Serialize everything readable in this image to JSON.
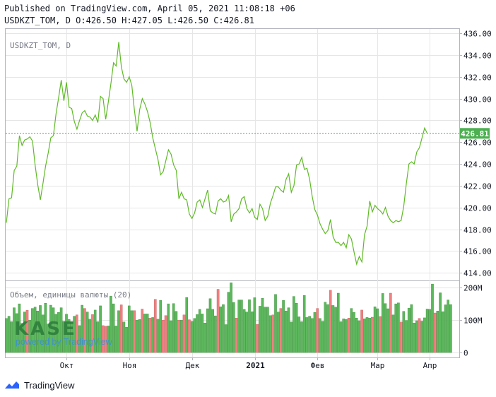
{
  "header": {
    "line1": "Published on TradingView.com, April 05, 2021 11:08:18 +06",
    "line2": "USDKZT_TOM, D O:426.50 H:427.05 L:426.50 C:426.81"
  },
  "footer": {
    "brand": "TradingView"
  },
  "watermark": {
    "logo_text": "KASE",
    "tagline": "powered by TradingView"
  },
  "colors": {
    "line": "#5fba27",
    "up": "#5cb85c",
    "down": "#f08080",
    "last": "#4caf50",
    "grid": "#e6e6e6"
  },
  "chart_data": {
    "type": "line",
    "title": "USDKZT_TOM, D",
    "y_ticks": [
      "436.00",
      "434.00",
      "432.00",
      "430.00",
      "428.00",
      "426.00",
      "424.00",
      "422.00",
      "420.00",
      "418.00",
      "416.00",
      "414.00"
    ],
    "ylim": [
      413.3,
      436.4
    ],
    "x_ticks": [
      "Окт",
      "Ноя",
      "Дек",
      "2021",
      "Фев",
      "Мар",
      "Апр"
    ],
    "x_tick_index": [
      23,
      47,
      71,
      95,
      119,
      142,
      162
    ],
    "last_value": "426.81",
    "series": [
      {
        "values": [
          418.6,
          420.8,
          420.9,
          423.4,
          423.8,
          426.6,
          425.7,
          426.2,
          426.3,
          426.5,
          426.1,
          423.9,
          422.1,
          420.7,
          422.2,
          423.8,
          425.0,
          426.4,
          426.6,
          428.6,
          430.1,
          431.7,
          429.8,
          431.5,
          429.2,
          429.1,
          427.9,
          427.2,
          428.0,
          428.7,
          428.9,
          428.4,
          428.3,
          428.0,
          428.5,
          427.8,
          430.2,
          430.0,
          428.1,
          429.7,
          431.4,
          433.3,
          433.0,
          435.2,
          432.9,
          431.8,
          431.5,
          432.0,
          431.2,
          428.9,
          427.0,
          429.0,
          430.0,
          429.5,
          428.8,
          427.8,
          426.4,
          425.4,
          424.4,
          423.0,
          423.3,
          424.3,
          425.3,
          424.9,
          423.9,
          423.4,
          420.8,
          421.4,
          420.8,
          420.7,
          419.4,
          419.0,
          419.5,
          420.5,
          420.7,
          420.0,
          420.8,
          421.6,
          419.7,
          419.5,
          419.4,
          420.6,
          420.8,
          420.5,
          420.6,
          421.1,
          418.7,
          419.4,
          419.6,
          419.9,
          420.8,
          421.0,
          419.9,
          419.5,
          419.9,
          419.1,
          418.9,
          420.3,
          419.9,
          418.8,
          419.2,
          420.4,
          421.1,
          421.9,
          421.9,
          421.6,
          421.4,
          422.6,
          423.1,
          421.4,
          422.0,
          423.9,
          424.0,
          424.6,
          423.5,
          423.6,
          422.6,
          421.0,
          419.8,
          419.3,
          418.5,
          418.0,
          417.6,
          417.9,
          418.9,
          417.3,
          416.8,
          416.8,
          416.5,
          416.8,
          416.3,
          417.5,
          417.1,
          415.9,
          414.8,
          415.5,
          415.0,
          417.5,
          418.3,
          420.6,
          419.6,
          420.2,
          419.9,
          419.7,
          419.4,
          420.0,
          419.2,
          418.8,
          418.6,
          418.8,
          418.7,
          418.8,
          420.1,
          422.2,
          424.0,
          424.2,
          424.0,
          425.1,
          425.5,
          426.4,
          427.3,
          426.8
        ]
      }
    ],
    "volume": {
      "label": "Объем, единицы валюты (20)",
      "y_ticks": [
        "200M",
        "100M",
        "0"
      ],
      "ylim": [
        0,
        220
      ],
      "bars": [
        [
          105,
          1
        ],
        [
          112,
          1
        ],
        [
          95,
          1
        ],
        [
          138,
          1
        ],
        [
          120,
          1
        ],
        [
          150,
          1
        ],
        [
          90,
          1
        ],
        [
          125,
          1
        ],
        [
          130,
          0
        ],
        [
          100,
          1
        ],
        [
          136,
          1
        ],
        [
          140,
          1
        ],
        [
          128,
          1
        ],
        [
          145,
          1
        ],
        [
          116,
          1
        ],
        [
          152,
          1
        ],
        [
          88,
          1
        ],
        [
          146,
          1
        ],
        [
          138,
          1
        ],
        [
          118,
          1
        ],
        [
          124,
          1
        ],
        [
          138,
          1
        ],
        [
          96,
          1
        ],
        [
          118,
          1
        ],
        [
          102,
          1
        ],
        [
          95,
          1
        ],
        [
          112,
          1
        ],
        [
          116,
          0
        ],
        [
          83,
          1
        ],
        [
          146,
          1
        ],
        [
          136,
          0
        ],
        [
          125,
          1
        ],
        [
          103,
          1
        ],
        [
          117,
          0
        ],
        [
          131,
          1
        ],
        [
          95,
          1
        ],
        [
          144,
          1
        ],
        [
          83,
          0
        ],
        [
          81,
          0
        ],
        [
          82,
          1
        ],
        [
          174,
          1
        ],
        [
          150,
          1
        ],
        [
          82,
          1
        ],
        [
          129,
          1
        ],
        [
          147,
          0
        ],
        [
          94,
          1
        ],
        [
          78,
          1
        ],
        [
          144,
          1
        ],
        [
          129,
          1
        ],
        [
          129,
          0
        ],
        [
          100,
          1
        ],
        [
          102,
          1
        ],
        [
          134,
          0
        ],
        [
          119,
          1
        ],
        [
          119,
          1
        ],
        [
          106,
          0
        ],
        [
          108,
          1
        ],
        [
          164,
          0
        ],
        [
          103,
          1
        ],
        [
          161,
          1
        ],
        [
          100,
          0
        ],
        [
          114,
          0
        ],
        [
          150,
          1
        ],
        [
          98,
          1
        ],
        [
          151,
          1
        ],
        [
          127,
          1
        ],
        [
          100,
          0
        ],
        [
          100,
          1
        ],
        [
          116,
          0
        ],
        [
          170,
          1
        ],
        [
          101,
          0
        ],
        [
          96,
          1
        ],
        [
          105,
          1
        ],
        [
          117,
          1
        ],
        [
          133,
          1
        ],
        [
          119,
          1
        ],
        [
          91,
          1
        ],
        [
          135,
          1
        ],
        [
          166,
          1
        ],
        [
          133,
          1
        ],
        [
          113,
          1
        ],
        [
          195,
          0
        ],
        [
          141,
          1
        ],
        [
          148,
          1
        ],
        [
          86,
          1
        ],
        [
          186,
          1
        ],
        [
          215,
          1
        ],
        [
          154,
          1
        ],
        [
          106,
          0
        ],
        [
          162,
          1
        ],
        [
          162,
          1
        ],
        [
          133,
          1
        ],
        [
          125,
          1
        ],
        [
          163,
          1
        ],
        [
          126,
          1
        ],
        [
          169,
          1
        ],
        [
          87,
          0
        ],
        [
          143,
          1
        ],
        [
          167,
          1
        ],
        [
          140,
          1
        ],
        [
          140,
          1
        ],
        [
          114,
          1
        ],
        [
          116,
          0
        ],
        [
          179,
          1
        ],
        [
          125,
          1
        ],
        [
          136,
          0
        ],
        [
          161,
          1
        ],
        [
          128,
          1
        ],
        [
          138,
          1
        ],
        [
          94,
          1
        ],
        [
          173,
          1
        ],
        [
          152,
          1
        ],
        [
          110,
          1
        ],
        [
          95,
          1
        ],
        [
          176,
          1
        ],
        [
          108,
          1
        ],
        [
          112,
          1
        ],
        [
          105,
          1
        ],
        [
          124,
          1
        ],
        [
          136,
          0
        ],
        [
          105,
          1
        ],
        [
          96,
          1
        ],
        [
          155,
          1
        ],
        [
          148,
          1
        ],
        [
          192,
          0
        ],
        [
          145,
          1
        ],
        [
          140,
          1
        ],
        [
          183,
          1
        ],
        [
          95,
          1
        ],
        [
          104,
          1
        ],
        [
          102,
          1
        ],
        [
          106,
          0
        ],
        [
          136,
          1
        ],
        [
          124,
          1
        ],
        [
          106,
          1
        ],
        [
          98,
          1
        ],
        [
          131,
          0
        ],
        [
          104,
          1
        ],
        [
          108,
          1
        ],
        [
          106,
          1
        ],
        [
          109,
          0
        ],
        [
          141,
          1
        ],
        [
          135,
          1
        ],
        [
          111,
          0
        ],
        [
          182,
          1
        ],
        [
          151,
          1
        ],
        [
          135,
          1
        ],
        [
          183,
          0
        ],
        [
          116,
          1
        ],
        [
          150,
          1
        ],
        [
          153,
          1
        ],
        [
          94,
          0
        ],
        [
          127,
          1
        ],
        [
          99,
          1
        ],
        [
          137,
          1
        ],
        [
          148,
          1
        ],
        [
          91,
          1
        ],
        [
          98,
          1
        ],
        [
          105,
          0
        ],
        [
          97,
          1
        ],
        [
          107,
          1
        ],
        [
          134,
          1
        ],
        [
          133,
          1
        ],
        [
          211,
          1
        ],
        [
          122,
          0
        ],
        [
          128,
          1
        ],
        [
          184,
          1
        ],
        [
          126,
          1
        ],
        [
          147,
          1
        ],
        [
          162,
          1
        ],
        [
          148,
          1
        ]
      ]
    }
  }
}
